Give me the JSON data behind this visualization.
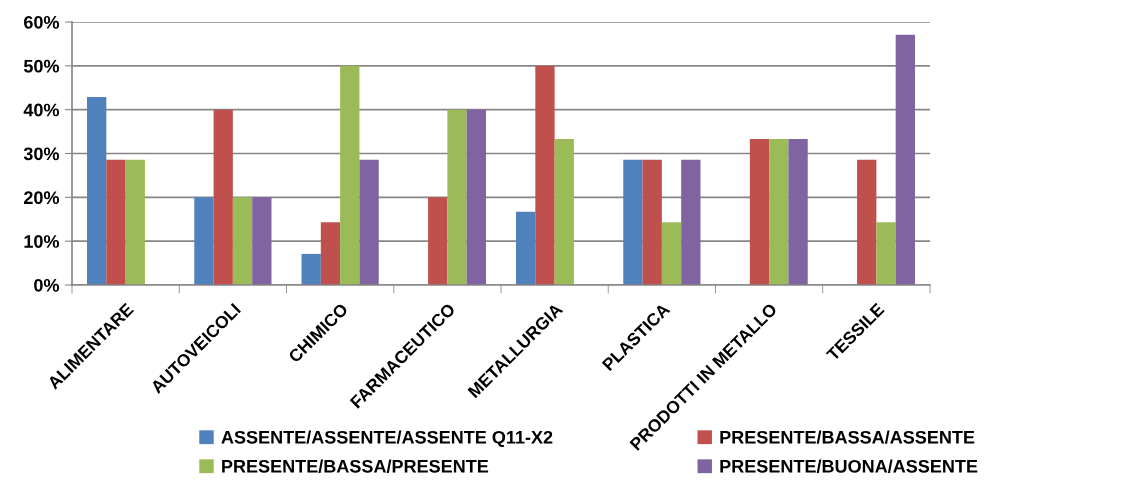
{
  "chart_data": {
    "type": "bar",
    "categories": [
      "ALIMENTARE",
      "AUTOVEICOLI",
      "CHIMICO",
      "FARMACEUTICO",
      "METALLURGIA",
      "PLASTICA",
      "PRODOTTI IN METALLO",
      "TESSILE"
    ],
    "series": [
      {
        "name": "ASSENTE/ASSENTE/ASSENTE Q11-X2",
        "color": "#4f81bd",
        "values": [
          42.9,
          20,
          7.1,
          null,
          16.7,
          28.6,
          null,
          null
        ]
      },
      {
        "name": "PRESENTE/BASSA/ASSENTE",
        "color": "#c0504d",
        "values": [
          28.6,
          40,
          14.3,
          20,
          50,
          28.6,
          33.3,
          28.6
        ]
      },
      {
        "name": "PRESENTE/BASSA/PRESENTE",
        "color": "#9bbb59",
        "values": [
          28.6,
          20,
          50,
          40,
          33.3,
          14.3,
          33.3,
          14.3
        ]
      },
      {
        "name": "PRESENTE/BUONA/ASSENTE",
        "color": "#8064a2",
        "values": [
          null,
          20,
          28.6,
          40,
          null,
          28.6,
          33.3,
          57.1
        ]
      }
    ],
    "ylim": [
      0,
      60
    ],
    "yticks": [
      {
        "value": 0,
        "label": "0%"
      },
      {
        "value": 10,
        "label": "10%"
      },
      {
        "value": 20,
        "label": "20%"
      },
      {
        "value": 30,
        "label": "30%"
      },
      {
        "value": 40,
        "label": "40%"
      },
      {
        "value": 50,
        "label": "50%"
      },
      {
        "value": 60,
        "label": "60%"
      }
    ],
    "grid": "y",
    "legend": "bottom"
  }
}
